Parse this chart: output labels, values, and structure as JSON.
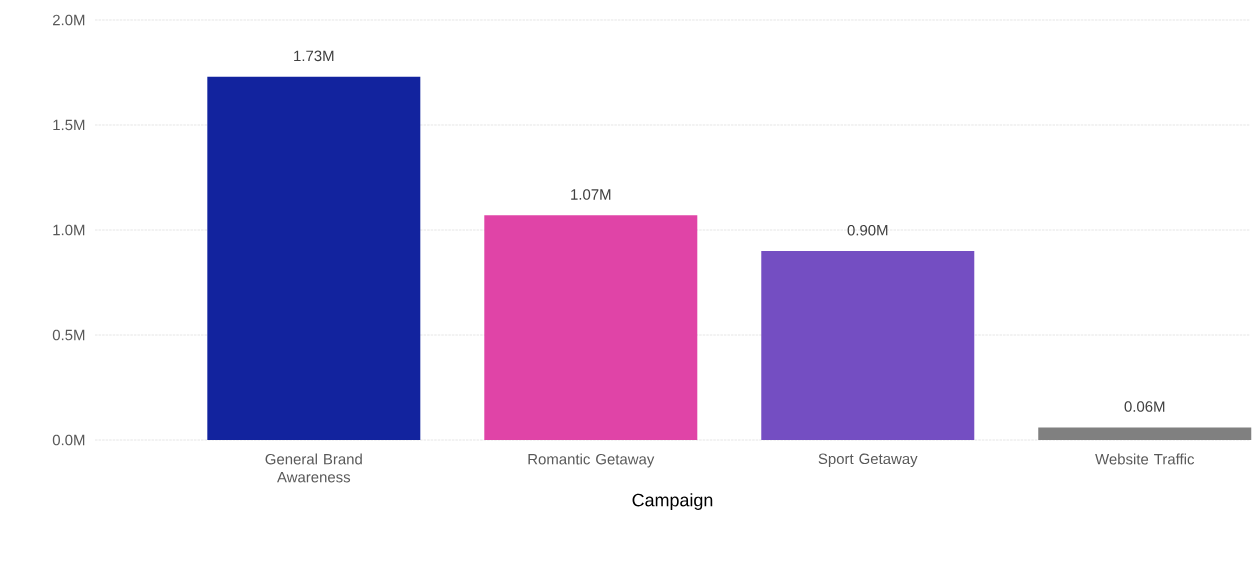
{
  "chart_data": {
    "type": "bar",
    "xlabel": "Campaign",
    "categories": [
      "General Brand Awareness",
      "Romantic Getaway",
      "Sport Getaway",
      "Website Traffic"
    ],
    "values": [
      1730000,
      1070000,
      900000,
      60000
    ],
    "colors": [
      "#12239e",
      "#e044a7",
      "#744ec2",
      "#808080"
    ],
    "value_labels": [
      "1.73M",
      "1.07M",
      "0.90M",
      "0.06M"
    ],
    "ylim": [
      0,
      2000000
    ],
    "yticks": [
      {
        "value": 0,
        "label": "0.0M"
      },
      {
        "value": 500000,
        "label": "0.5M"
      },
      {
        "value": 1000000,
        "label": "1.0M"
      },
      {
        "value": 1500000,
        "label": "1.5M"
      },
      {
        "value": 2000000,
        "label": "2.0M"
      }
    ],
    "grid": "y"
  }
}
